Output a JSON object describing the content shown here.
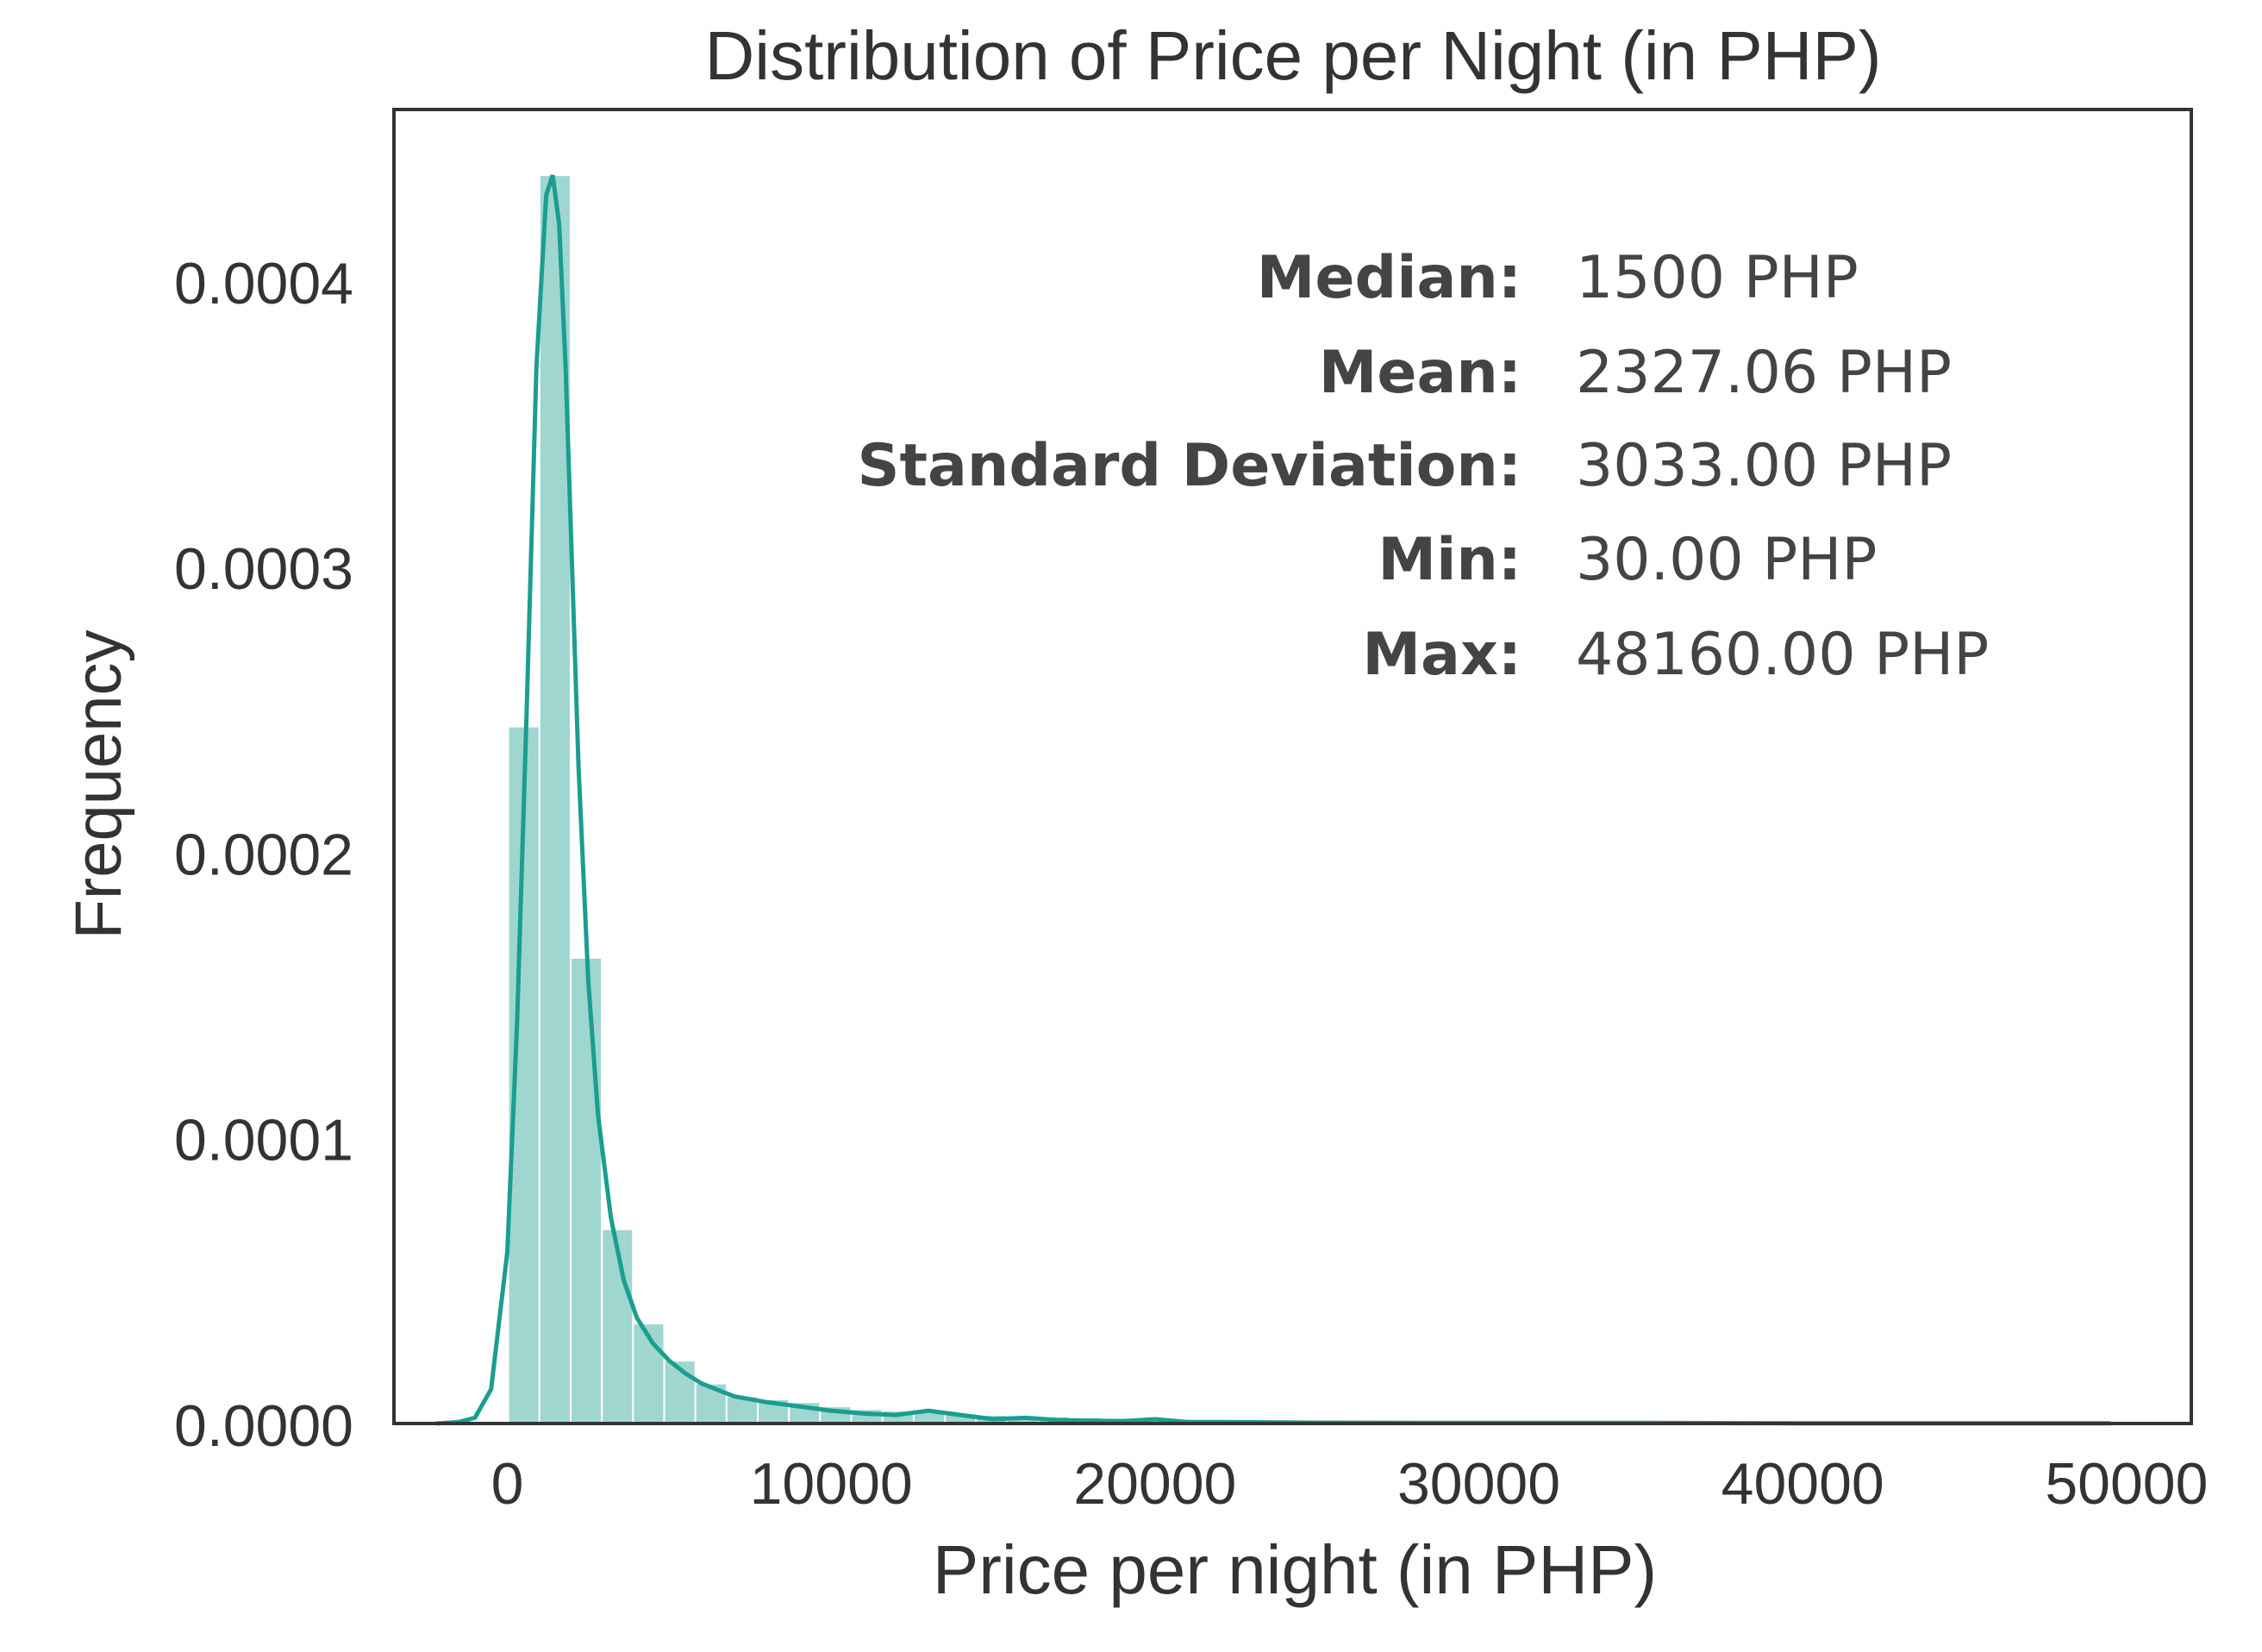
{
  "chart_data": {
    "type": "bar",
    "title": "Distribution of Price per Night (in PHP)",
    "xlabel": "Price per night (in PHP)",
    "ylabel": "Frequency",
    "xlim": [
      -3500,
      52000
    ],
    "ylim": [
      0,
      0.00046
    ],
    "x_ticks": [
      0,
      10000,
      20000,
      30000,
      40000,
      50000
    ],
    "x_tick_labels": [
      "0",
      "10000",
      "20000",
      "30000",
      "40000",
      "50000"
    ],
    "y_ticks": [
      0,
      0.0001,
      0.0002,
      0.0003,
      0.0004
    ],
    "y_tick_labels": [
      "0.0000",
      "0.0001",
      "0.0002",
      "0.0003",
      "0.0004"
    ],
    "grid": false,
    "histogram": {
      "bin_width": 963,
      "bin_start": 30,
      "color": "#1a9e8f",
      "values": [
        0.000244,
        0.000437,
        0.000163,
        6.8e-05,
        3.5e-05,
        2.2e-05,
        1.4e-05,
        9.5e-06,
        8.5e-06,
        7.5e-06,
        6e-06,
        5e-06,
        4.5e-06,
        4e-06,
        3.5e-06,
        3e-06,
        2.8e-06,
        2.5e-06,
        2.2e-06,
        2e-06,
        1.8e-06,
        1.6e-06,
        1.4e-06,
        1.2e-06,
        1e-06,
        9e-07,
        8e-07,
        7e-07,
        6e-07,
        5e-07,
        5e-07,
        4e-07,
        4e-07,
        3e-07,
        3e-07,
        3e-07,
        2e-07,
        2e-07,
        2e-07,
        2e-07,
        1e-07,
        1e-07,
        1e-07,
        1e-07,
        1e-07,
        1e-07,
        1e-07,
        1e-07,
        1e-07,
        1e-07
      ]
    },
    "kde": {
      "color": "#1a9e8f",
      "x": [
        -2200,
        -1500,
        -1000,
        -500,
        0,
        300,
        600,
        900,
        1200,
        1400,
        1600,
        1800,
        2000,
        2200,
        2500,
        2800,
        3200,
        3600,
        4000,
        4500,
        5000,
        5500,
        6000,
        7000,
        8000,
        9000,
        10000,
        11000,
        12000,
        13000,
        14000,
        15000,
        16000,
        17000,
        18000,
        19000,
        20000,
        21000,
        22000,
        25000,
        30000,
        35000,
        40000,
        45000,
        49500
      ],
      "y": [
        0,
        5e-07,
        2e-06,
        1.2e-05,
        6e-05,
        0.00014,
        0.00025,
        0.00037,
        0.00043,
        0.000437,
        0.00042,
        0.00037,
        0.0003,
        0.00023,
        0.000155,
        0.000108,
        7.2e-05,
        5e-05,
        3.7e-05,
        2.8e-05,
        2.2e-05,
        1.75e-05,
        1.4e-05,
        9.5e-06,
        7.5e-06,
        6e-06,
        4.5e-06,
        3.5e-06,
        3e-06,
        4.5e-06,
        3e-06,
        1.5e-06,
        2e-06,
        1.2e-06,
        1e-06,
        8e-07,
        1.5e-06,
        5e-07,
        5e-07,
        3e-07,
        2e-07,
        2e-07,
        1e-07,
        1e-07,
        1e-07
      ]
    },
    "annotation": [
      {
        "label": "Median:",
        "value": "1500 PHP"
      },
      {
        "label": "Mean:",
        "value": "2327.06 PHP"
      },
      {
        "label": "Standard Deviation:",
        "value": "3033.00 PHP"
      },
      {
        "label": "Min:",
        "value": "30.00 PHP"
      },
      {
        "label": "Max:",
        "value": "48160.00 PHP"
      }
    ]
  }
}
